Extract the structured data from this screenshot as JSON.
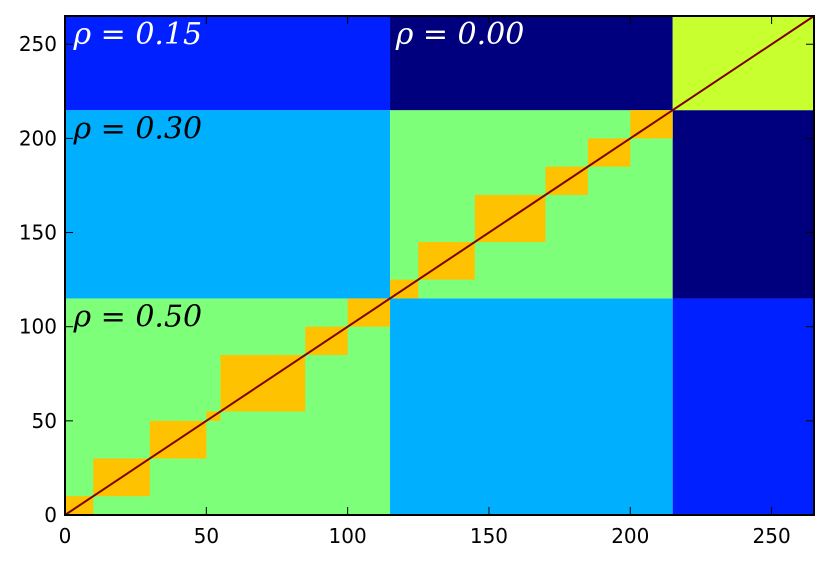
{
  "chart_data": {
    "type": "heatmap",
    "title": "",
    "xlabel": "",
    "ylabel": "",
    "xlim": [
      0,
      265
    ],
    "ylim": [
      0,
      265
    ],
    "xticks": [
      0,
      50,
      100,
      150,
      200,
      250
    ],
    "yticks": [
      0,
      50,
      100,
      150,
      200,
      250
    ],
    "grid": false,
    "legend": "none",
    "colors": {
      "dark_navy": "#00007f",
      "blue": "#0020ff",
      "sky_blue": "#00b0ff",
      "light_green": "#7eff7a",
      "orange": "#ffc200",
      "yellow_green": "#c8ff2f",
      "diagonal": "#7f0000",
      "frame": "#000000"
    },
    "regions": [
      {
        "x": [
          0,
          115
        ],
        "y": [
          0,
          115
        ],
        "color": "light_green"
      },
      {
        "x": [
          115,
          215
        ],
        "y": [
          0,
          115
        ],
        "color": "sky_blue"
      },
      {
        "x": [
          215,
          265
        ],
        "y": [
          0,
          115
        ],
        "color": "blue"
      },
      {
        "x": [
          0,
          115
        ],
        "y": [
          115,
          215
        ],
        "color": "sky_blue"
      },
      {
        "x": [
          115,
          215
        ],
        "y": [
          115,
          215
        ],
        "color": "light_green"
      },
      {
        "x": [
          215,
          265
        ],
        "y": [
          115,
          215
        ],
        "color": "dark_navy"
      },
      {
        "x": [
          0,
          115
        ],
        "y": [
          215,
          265
        ],
        "color": "blue"
      },
      {
        "x": [
          115,
          215
        ],
        "y": [
          215,
          265
        ],
        "color": "dark_navy"
      },
      {
        "x": [
          215,
          265
        ],
        "y": [
          215,
          265
        ],
        "color": "yellow_green"
      }
    ],
    "diagonal_blocks": [
      [
        0,
        10
      ],
      [
        10,
        30
      ],
      [
        30,
        50
      ],
      [
        50,
        55
      ],
      [
        55,
        85
      ],
      [
        85,
        100
      ],
      [
        100,
        115
      ],
      [
        115,
        125
      ],
      [
        125,
        145
      ],
      [
        145,
        170
      ],
      [
        170,
        185
      ],
      [
        185,
        200
      ],
      [
        200,
        215
      ]
    ],
    "annotations": [
      {
        "text": "ρ = 0.15",
        "x": 3,
        "y": 250,
        "color": "#ffffff"
      },
      {
        "text": "ρ = 0.00",
        "x": 117,
        "y": 250,
        "color": "#ffffff"
      },
      {
        "text": "ρ = 0.30",
        "x": 3,
        "y": 200,
        "color": "#000000"
      },
      {
        "text": "ρ = 0.50",
        "x": 3,
        "y": 100,
        "color": "#000000"
      }
    ]
  }
}
